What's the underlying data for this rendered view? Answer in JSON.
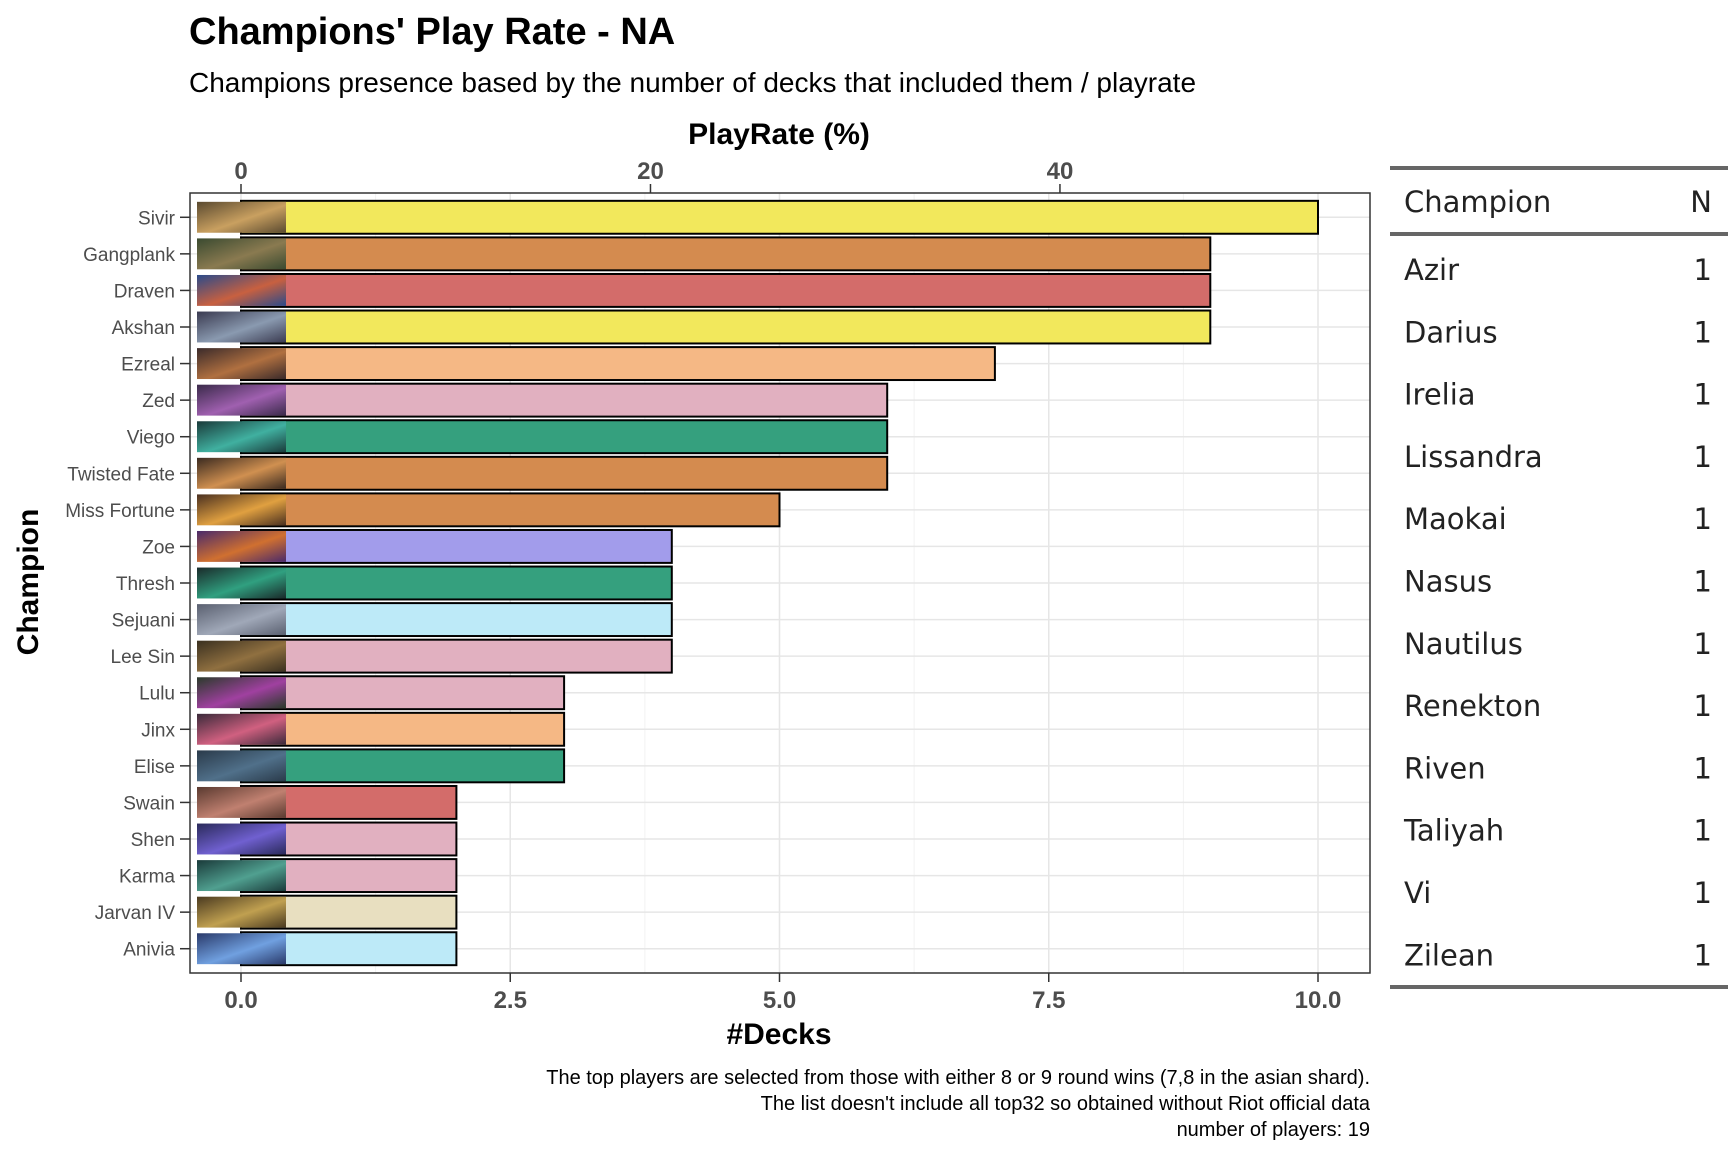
{
  "chart_data": {
    "type": "bar",
    "orientation": "horizontal",
    "title": "Champions' Play Rate - NA",
    "subtitle": "Champions presence based by the number of decks that included them / playrate",
    "xlabel": "#Decks",
    "x2label": "PlayRate (%)",
    "ylabel": "Champion",
    "xlim": [
      0,
      10
    ],
    "x_ticks": [
      "0.0",
      "2.5",
      "5.0",
      "7.5",
      "10.0"
    ],
    "x_tick_values": [
      0,
      2.5,
      5,
      7.5,
      10
    ],
    "x2_ticks": [
      "0",
      "20",
      "40"
    ],
    "x2_tick_values": [
      0,
      20,
      40
    ],
    "decks_per_percent": 0.1901,
    "grid": true,
    "categories": [
      "Sivir",
      "Gangplank",
      "Draven",
      "Akshan",
      "Ezreal",
      "Zed",
      "Viego",
      "Twisted Fate",
      "Miss Fortune",
      "Zoe",
      "Thresh",
      "Sejuani",
      "Lee Sin",
      "Lulu",
      "Jinx",
      "Elise",
      "Swain",
      "Shen",
      "Karma",
      "Jarvan IV",
      "Anivia"
    ],
    "values": [
      10,
      9,
      9,
      9,
      7,
      6,
      6,
      6,
      5,
      4,
      4,
      4,
      4,
      3,
      3,
      3,
      2,
      2,
      2,
      2,
      2
    ],
    "bar_colors": [
      "#f2e85c",
      "#d48b4f",
      "#d36c6a",
      "#f2e85c",
      "#f5b885",
      "#e1b0c0",
      "#35a07e",
      "#d48b4f",
      "#d48b4f",
      "#a29ceb",
      "#35a07e",
      "#bdeaf8",
      "#e1b0c0",
      "#e1b0c0",
      "#f5b885",
      "#35a07e",
      "#d36c6a",
      "#e1b0c0",
      "#e1b0c0",
      "#e8dfc0",
      "#bdeaf8"
    ],
    "thumb_colors": [
      [
        "#5a4a30",
        "#c9a060"
      ],
      [
        "#3a4a30",
        "#8a7a50"
      ],
      [
        "#2a4a8a",
        "#c86040"
      ],
      [
        "#3a3a50",
        "#8a9ab0"
      ],
      [
        "#3a2a2a",
        "#b07040"
      ],
      [
        "#3a2a4a",
        "#a060b0"
      ],
      [
        "#1a3a3a",
        "#40b0a0"
      ],
      [
        "#3a2a20",
        "#d09050"
      ],
      [
        "#4a3020",
        "#e0a040"
      ],
      [
        "#4a2a6a",
        "#d07030"
      ],
      [
        "#1a2a2a",
        "#30a080"
      ],
      [
        "#5a6070",
        "#a0a8b8"
      ],
      [
        "#3a3020",
        "#907040"
      ],
      [
        "#2a3a2a",
        "#a040a0"
      ],
      [
        "#3a2a3a",
        "#d06080"
      ],
      [
        "#2a3a4a",
        "#50708a"
      ],
      [
        "#5a3a30",
        "#c08070"
      ],
      [
        "#2a2a5a",
        "#7060d0"
      ],
      [
        "#1a3a3a",
        "#50a090"
      ],
      [
        "#4a3a20",
        "#c0a050"
      ],
      [
        "#2a3a6a",
        "#70a0e0"
      ]
    ]
  },
  "caption": {
    "line1": "The top players are selected from those with either 8 or 9 round wins (7,8 in the asian shard).",
    "line2": "The list doesn't include all top32 so obtained without Riot official data",
    "line3": "number of players: 19"
  },
  "side_table": {
    "header_champion": "Champion",
    "header_n": "N",
    "rows": [
      {
        "champion": "Azir",
        "n": "1"
      },
      {
        "champion": "Darius",
        "n": "1"
      },
      {
        "champion": "Irelia",
        "n": "1"
      },
      {
        "champion": "Lissandra",
        "n": "1"
      },
      {
        "champion": "Maokai",
        "n": "1"
      },
      {
        "champion": "Nasus",
        "n": "1"
      },
      {
        "champion": "Nautilus",
        "n": "1"
      },
      {
        "champion": "Renekton",
        "n": "1"
      },
      {
        "champion": "Riven",
        "n": "1"
      },
      {
        "champion": "Taliyah",
        "n": "1"
      },
      {
        "champion": "Vi",
        "n": "1"
      },
      {
        "champion": "Zilean",
        "n": "1"
      }
    ]
  }
}
